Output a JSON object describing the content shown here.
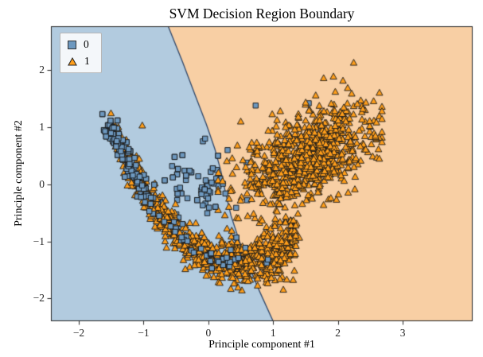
{
  "chart_data": {
    "type": "scatter",
    "title": "SVM Decision Region Boundary",
    "xlabel": "Principle component #1",
    "ylabel": "Principle component #2",
    "xlim": [
      -2.43,
      4.08
    ],
    "ylim": [
      -2.4,
      2.77
    ],
    "xticks": [
      -2,
      -1,
      0,
      1,
      2,
      3
    ],
    "yticks": [
      -2,
      -1,
      0,
      1,
      2
    ],
    "grid": false,
    "legend": {
      "position": "upper-left",
      "entries": [
        {
          "label": "0",
          "marker": "square",
          "color": "#6d98bf",
          "edge": "#222222"
        },
        {
          "label": "1",
          "marker": "triangle",
          "color": "#ff9e1b",
          "edge": "#222222"
        }
      ]
    },
    "regions": {
      "class0_fill": "#b2cbdf",
      "class1_fill": "#f8cfa4",
      "boundary_line_color": "#32496b",
      "boundary": [
        [
          -0.62,
          2.77
        ],
        [
          -0.4,
          2.15
        ],
        [
          -0.2,
          1.55
        ],
        [
          -0.03,
          1.05
        ],
        [
          0.1,
          0.62
        ],
        [
          0.19,
          0.25
        ],
        [
          0.26,
          -0.12
        ],
        [
          0.35,
          -0.55
        ],
        [
          0.48,
          -1.0
        ],
        [
          0.63,
          -1.45
        ],
        [
          0.8,
          -1.9
        ],
        [
          1.0,
          -2.4
        ]
      ]
    },
    "curve": {
      "a": 0.62,
      "b": -0.55,
      "c": -1.25
    },
    "series": [
      {
        "name": "0",
        "marker": "square",
        "fill": "#6d98bf",
        "edge": "#141414",
        "clusters": [
          {
            "type": "curve",
            "count": 200,
            "x_min": -1.52,
            "x_max": 0.4,
            "x_pow": 1.6,
            "y_noise": 0.09,
            "x_jitter": 0.05
          },
          {
            "type": "blob",
            "count": 55,
            "cx": -0.2,
            "cy": -0.05,
            "sx": 0.3,
            "sy": 0.28
          },
          {
            "type": "blob",
            "count": 22,
            "cx": 0.35,
            "cy": -1.18,
            "sx": 0.3,
            "sy": 0.1
          }
        ],
        "outliers": [
          [
            0.73,
            1.38
          ],
          [
            1.55,
            1.42
          ],
          [
            0.92,
            -1.32
          ],
          [
            -0.05,
            0.8
          ],
          [
            0.55,
            -1.28
          ],
          [
            0.15,
            0.5
          ]
        ]
      },
      {
        "name": "1",
        "marker": "triangle",
        "fill": "#ff9e1b",
        "edge": "#1a1a1a",
        "clusters": [
          {
            "type": "curve",
            "count": 850,
            "x_min": -1.52,
            "x_max": 1.35,
            "x_pow": 0.8,
            "y_noise": 0.15,
            "y_noise_grow": 0.6,
            "x_jitter": 0.04
          },
          {
            "type": "blob_line",
            "count": 800,
            "x_mean": 1.5,
            "x_sd": 0.52,
            "x_min": 0.15,
            "x_max": 2.68,
            "slope": 0.5,
            "intercept": -0.28,
            "y_noise": 0.38
          }
        ],
        "outliers": [
          [
            1.78,
            1.86
          ],
          [
            1.96,
            1.62
          ],
          [
            2.58,
            0.85
          ],
          [
            -1.02,
            1.03
          ],
          [
            0.5,
            1.1
          ],
          [
            1.35,
            -0.9
          ]
        ]
      }
    ]
  }
}
